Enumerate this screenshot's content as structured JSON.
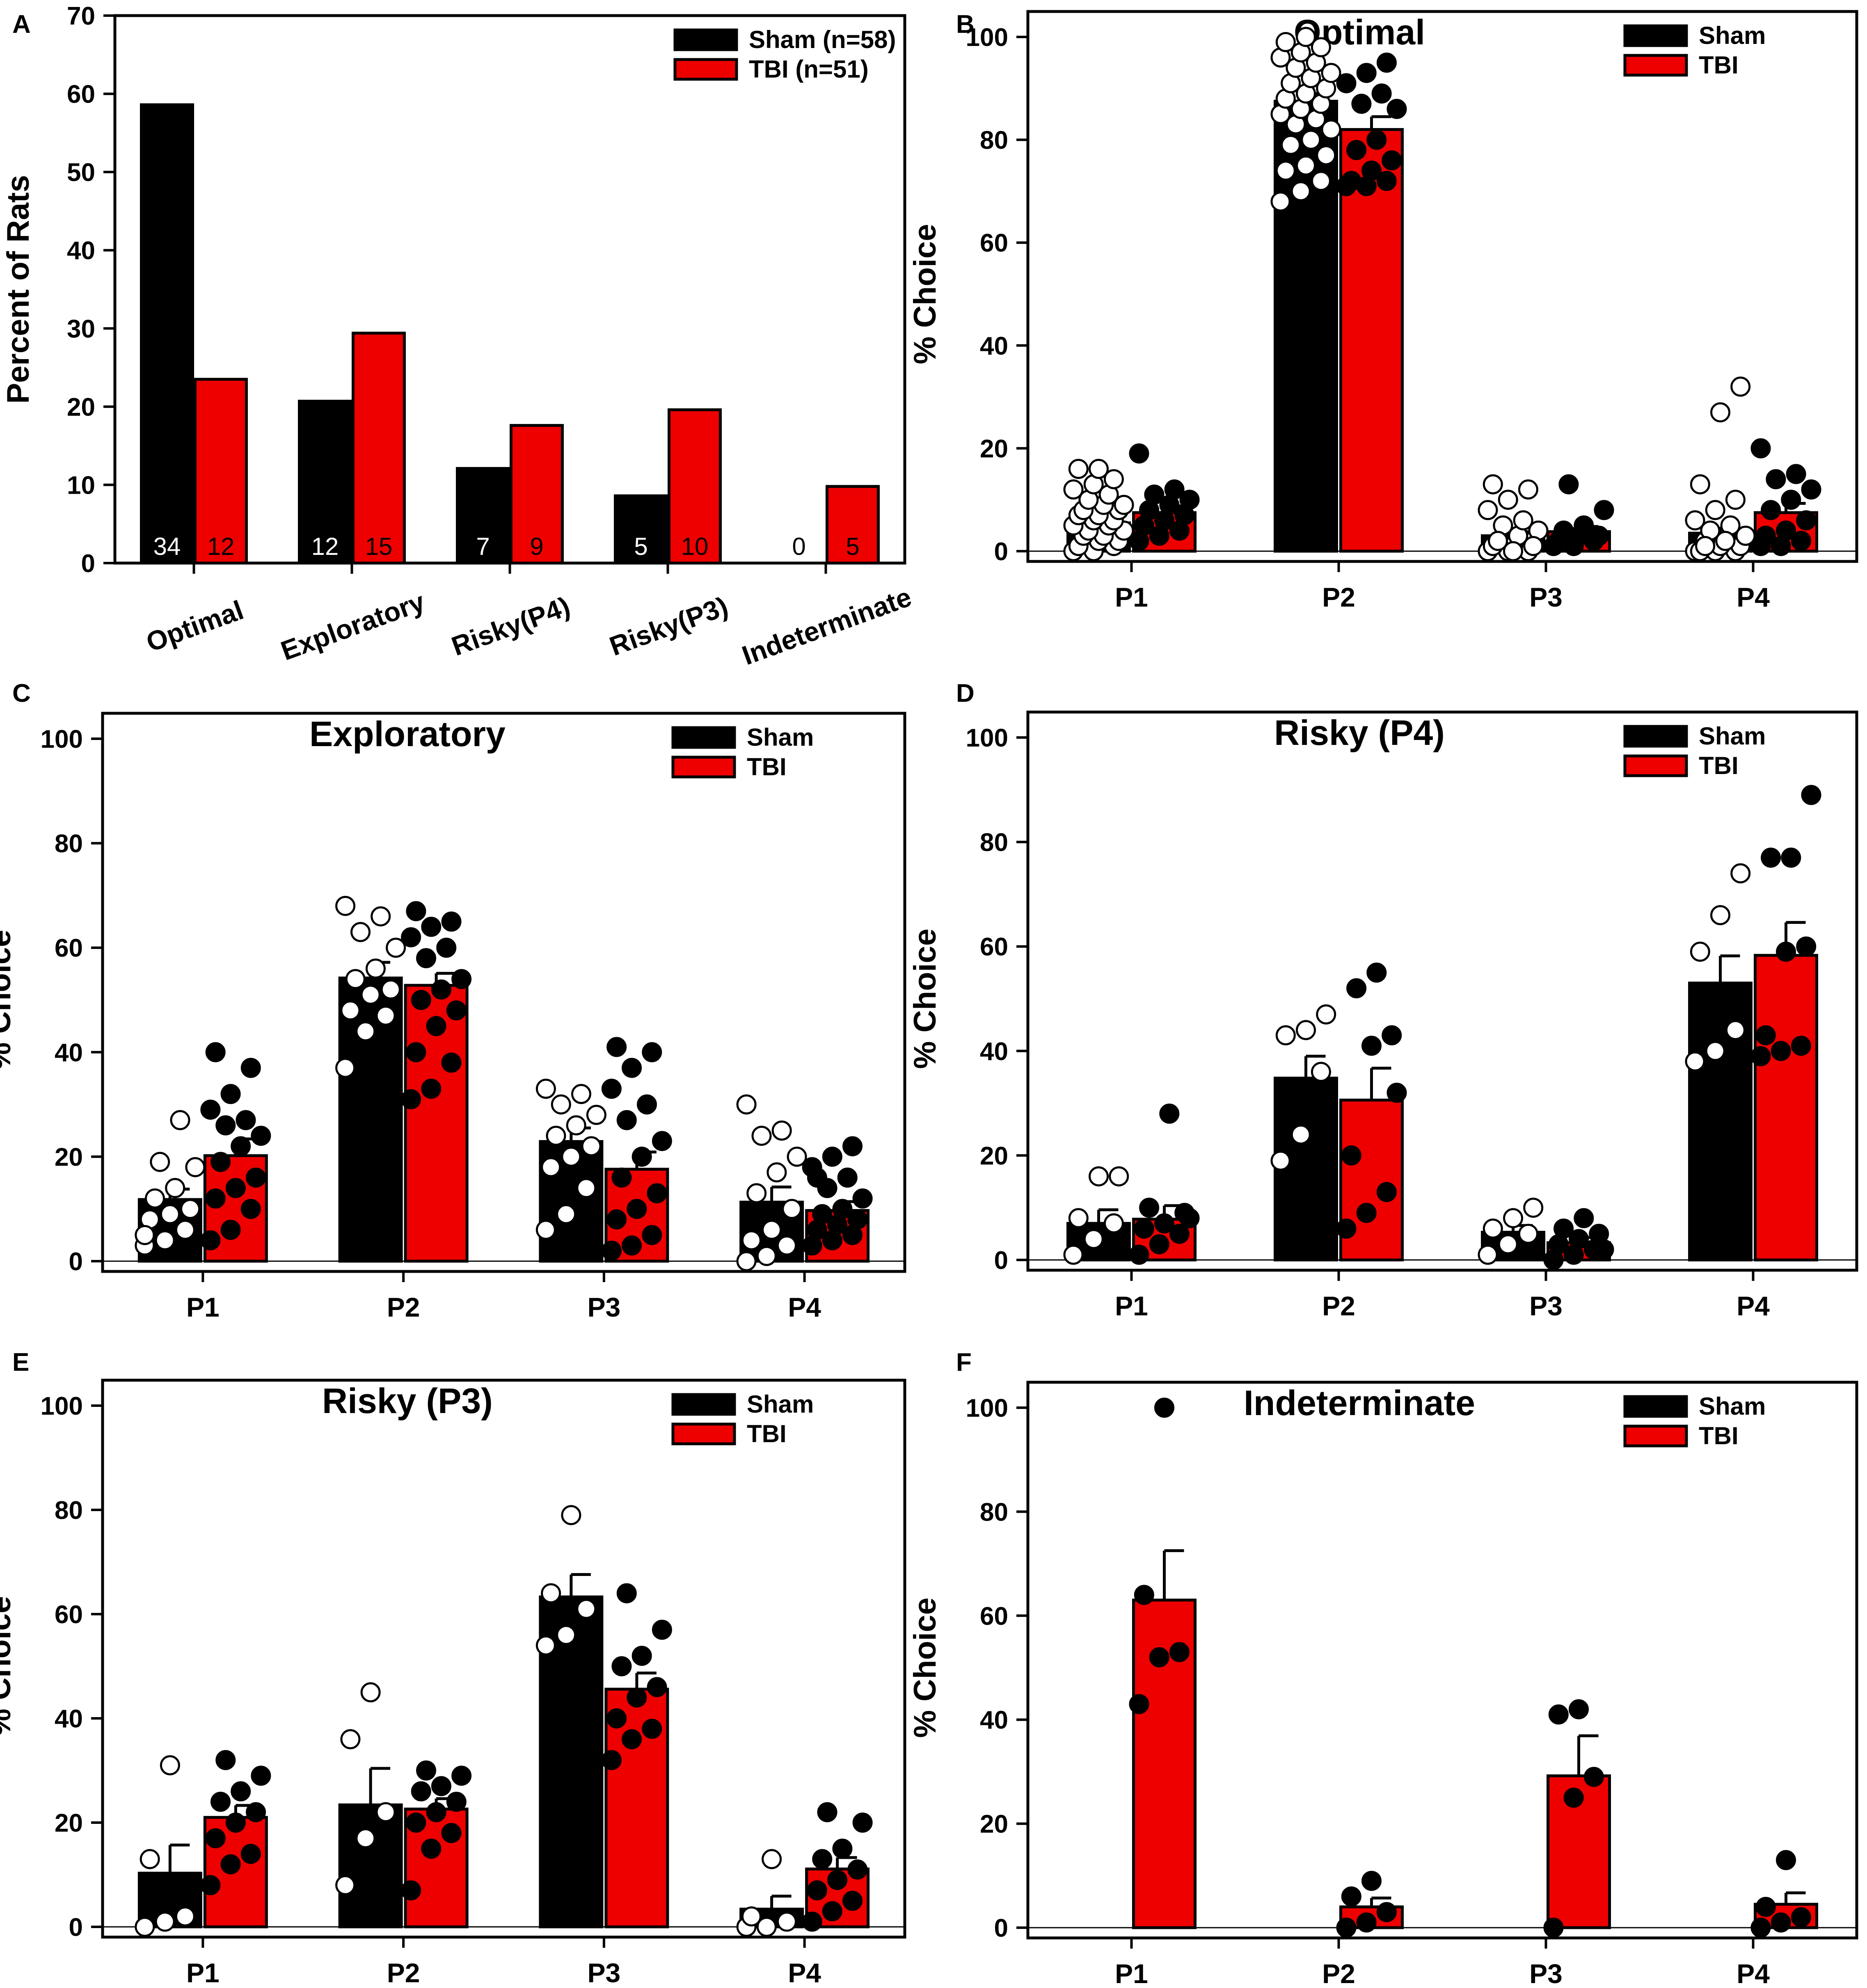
{
  "figure": {
    "colors": {
      "sham": "#000000",
      "tbi": "#ee0000",
      "axis": "#000000",
      "background": "#ffffff"
    }
  },
  "chart_data": [
    {
      "panel": "A",
      "type": "bar",
      "title": "",
      "ylabel": "Percent of Rats",
      "xlabel": "",
      "ylim": [
        0,
        70
      ],
      "yticks": [
        0,
        10,
        20,
        30,
        40,
        50,
        60,
        70
      ],
      "categories": [
        "Optimal",
        "Exploratory",
        "Risky(P4)",
        "Risky(P3)",
        "Indeterminate"
      ],
      "series": [
        {
          "name": "Sham",
          "legend": "Sham (n=58)",
          "values": [
            58.6,
            20.7,
            12.1,
            8.6,
            0
          ],
          "counts": [
            "34",
            "12",
            "7",
            "5",
            "0"
          ]
        },
        {
          "name": "TBI",
          "legend": "TBI (n=51)",
          "values": [
            23.5,
            29.4,
            17.6,
            19.6,
            9.8
          ],
          "counts": [
            "12",
            "15",
            "9",
            "10",
            "5"
          ]
        }
      ],
      "legend_position": "top-right"
    },
    {
      "panel": "B",
      "type": "bar",
      "title": "Optimal",
      "ylabel": "% Choice",
      "ylim": [
        0,
        100
      ],
      "yticks": [
        0,
        20,
        40,
        60,
        80,
        100
      ],
      "categories": [
        "P1",
        "P2",
        "P3",
        "P4"
      ],
      "series": [
        {
          "name": "Sham",
          "values": [
            5.5,
            87.5,
            3,
            3.5
          ],
          "sem": [
            1,
            1.5,
            0.8,
            1.2
          ],
          "points": [
            [
              0,
              0,
              1,
              1,
              2,
              2,
              3,
              3,
              4,
              4,
              5,
              5,
              6,
              6,
              7,
              7,
              8,
              8,
              9,
              9,
              10,
              11,
              12,
              13,
              14,
              16,
              16
            ],
            [
              68,
              70,
              72,
              74,
              75,
              77,
              79,
              80,
              82,
              83,
              84,
              85,
              86,
              87,
              88,
              89,
              90,
              91,
              92,
              93,
              94,
              95,
              96,
              97,
              98,
              99,
              100
            ],
            [
              0,
              0,
              0,
              1,
              1,
              2,
              2,
              3,
              4,
              5,
              6,
              8,
              10,
              12,
              13,
              0,
              1,
              2
            ],
            [
              0,
              0,
              0,
              0,
              1,
              1,
              2,
              2,
              3,
              4,
              5,
              6,
              8,
              10,
              13,
              27,
              32,
              1,
              2,
              3
            ]
          ]
        },
        {
          "name": "TBI",
          "values": [
            7.5,
            82,
            3.8,
            7.5
          ],
          "sem": [
            1.3,
            2.5,
            1,
            1.8
          ],
          "points": [
            [
              2,
              3,
              4,
              5,
              6,
              7,
              8,
              9,
              10,
              11,
              12,
              19
            ],
            [
              71,
              71,
              72,
              72,
              74,
              76,
              78,
              80,
              86,
              87,
              89,
              91,
              93,
              95
            ],
            [
              1,
              1,
              2,
              2,
              3,
              3,
              4,
              5,
              8,
              13
            ],
            [
              1,
              1,
              2,
              3,
              4,
              6,
              8,
              10,
              12,
              14,
              15,
              20
            ]
          ]
        }
      ],
      "legend": [
        "Sham",
        "TBI"
      ],
      "legend_position": "top-right"
    },
    {
      "panel": "C",
      "type": "bar",
      "title": "Exploratory",
      "ylabel": "% Choice",
      "ylim": [
        0,
        100
      ],
      "yticks": [
        0,
        20,
        40,
        60,
        80,
        100
      ],
      "categories": [
        "P1",
        "P2",
        "P3",
        "P4"
      ],
      "series": [
        {
          "name": "Sham",
          "values": [
            11.8,
            54.2,
            22.9,
            11.3
          ],
          "sem": [
            2,
            3,
            2.6,
            2.9
          ],
          "points": [
            [
              3,
              4,
              6,
              8,
              9,
              10,
              12,
              14,
              18,
              19,
              27,
              5
            ],
            [
              37,
              44,
              47,
              48,
              51,
              52,
              54,
              56,
              60,
              63,
              66,
              68
            ],
            [
              6,
              9,
              14,
              18,
              20,
              22,
              24,
              26,
              28,
              30,
              32,
              33
            ],
            [
              0,
              1,
              3,
              4,
              6,
              10,
              13,
              17,
              20,
              24,
              25,
              30
            ]
          ]
        },
        {
          "name": "TBI",
          "values": [
            20.2,
            52.8,
            17.6,
            9.7
          ],
          "sem": [
            3.2,
            2.3,
            3.3,
            1.7
          ],
          "points": [
            [
              4,
              6,
              10,
              12,
              14,
              16,
              19,
              22,
              24,
              26,
              27,
              29,
              32,
              37,
              40
            ],
            [
              31,
              33,
              38,
              40,
              45,
              48,
              50,
              52,
              54,
              58,
              60,
              62,
              64,
              65,
              67
            ],
            [
              2,
              3,
              5,
              8,
              10,
              13,
              16,
              20,
              23,
              27,
              30,
              33,
              37,
              40,
              41
            ],
            [
              3,
              4,
              5,
              6,
              7,
              8,
              9,
              10,
              12,
              14,
              16,
              18,
              20,
              22,
              16
            ]
          ]
        }
      ],
      "legend": [
        "Sham",
        "TBI"
      ],
      "legend_position": "top-right"
    },
    {
      "panel": "D",
      "type": "bar",
      "title": "Risky (P4)",
      "ylabel": "% Choice",
      "ylim": [
        0,
        100
      ],
      "yticks": [
        0,
        20,
        40,
        60,
        80,
        100
      ],
      "categories": [
        "P1",
        "P2",
        "P3",
        "P4"
      ],
      "series": [
        {
          "name": "Sham",
          "values": [
            7,
            34.8,
            5.3,
            53
          ],
          "sem": [
            2.6,
            4.2,
            1.3,
            5.2
          ],
          "points": [
            [
              1,
              4,
              7,
              8,
              16,
              16
            ],
            [
              19,
              24,
              36,
              43,
              44,
              47
            ],
            [
              1,
              3,
              5,
              6,
              8,
              10
            ],
            [
              38,
              40,
              44,
              59,
              66,
              74
            ]
          ]
        },
        {
          "name": "TBI",
          "values": [
            7.8,
            30.6,
            3.3,
            58.3
          ],
          "sem": [
            2.6,
            6.1,
            1,
            6.3
          ],
          "points": [
            [
              1,
              3,
              5,
              6,
              7,
              9,
              10,
              28,
              8
            ],
            [
              6,
              9,
              13,
              20,
              41,
              43,
              52,
              55,
              32
            ],
            [
              0,
              1,
              2,
              3,
              4,
              5,
              6,
              8,
              2
            ],
            [
              39,
              40,
              41,
              43,
              59,
              60,
              77,
              77,
              89
            ]
          ]
        }
      ],
      "legend": [
        "Sham",
        "TBI"
      ],
      "legend_position": "top-right"
    },
    {
      "panel": "E",
      "type": "bar",
      "title": "Risky (P3)",
      "ylabel": "% Choice",
      "ylim": [
        0,
        100
      ],
      "yticks": [
        0,
        20,
        40,
        60,
        80,
        100
      ],
      "categories": [
        "P1",
        "P2",
        "P3",
        "P4"
      ],
      "series": [
        {
          "name": "Sham",
          "values": [
            10.3,
            23.4,
            63.3,
            3.4
          ],
          "sem": [
            5.4,
            7,
            4.3,
            2.5
          ],
          "points": [
            [
              0,
              1,
              2,
              13,
              31
            ],
            [
              8,
              17,
              22,
              36,
              45
            ],
            [
              54,
              56,
              61,
              64,
              79
            ],
            [
              0,
              0,
              1,
              2,
              13
            ]
          ]
        },
        {
          "name": "TBI",
          "values": [
            21,
            22.6,
            45.6,
            11.1
          ],
          "sem": [
            2.3,
            2,
            3.1,
            2.2
          ],
          "points": [
            [
              8,
              12,
              14,
              17,
              20,
              22,
              24,
              26,
              29,
              32
            ],
            [
              7,
              15,
              18,
              20,
              22,
              24,
              26,
              27,
              29,
              30
            ],
            [
              32,
              36,
              38,
              40,
              44,
              46,
              50,
              52,
              57,
              64
            ],
            [
              1,
              3,
              5,
              7,
              9,
              11,
              13,
              15,
              20,
              22
            ]
          ]
        }
      ],
      "legend": [
        "Sham",
        "TBI"
      ],
      "legend_position": "top-right"
    },
    {
      "panel": "F",
      "type": "bar",
      "title": "Indeterminate",
      "ylabel": "% Choice",
      "ylim": [
        0,
        100
      ],
      "yticks": [
        0,
        20,
        40,
        60,
        80,
        100
      ],
      "categories": [
        "P1",
        "P2",
        "P3",
        "P4"
      ],
      "series": [
        {
          "name": "Sham",
          "values": [
            0,
            0,
            0,
            0
          ],
          "sem": [
            0,
            0,
            0,
            0
          ],
          "points": [
            [],
            [],
            [],
            []
          ]
        },
        {
          "name": "TBI",
          "values": [
            63,
            4,
            29.2,
            4.5
          ],
          "sem": [
            9.5,
            1.7,
            7.7,
            2.2
          ],
          "points": [
            [
              43,
              52,
              53,
              64,
              100
            ],
            [
              0,
              1,
              3,
              6,
              9
            ],
            [
              0,
              25,
              29,
              41,
              42
            ],
            [
              0,
              1,
              2,
              4,
              13
            ]
          ]
        }
      ],
      "legend": [
        "Sham",
        "TBI"
      ],
      "legend_position": "top-right"
    }
  ]
}
